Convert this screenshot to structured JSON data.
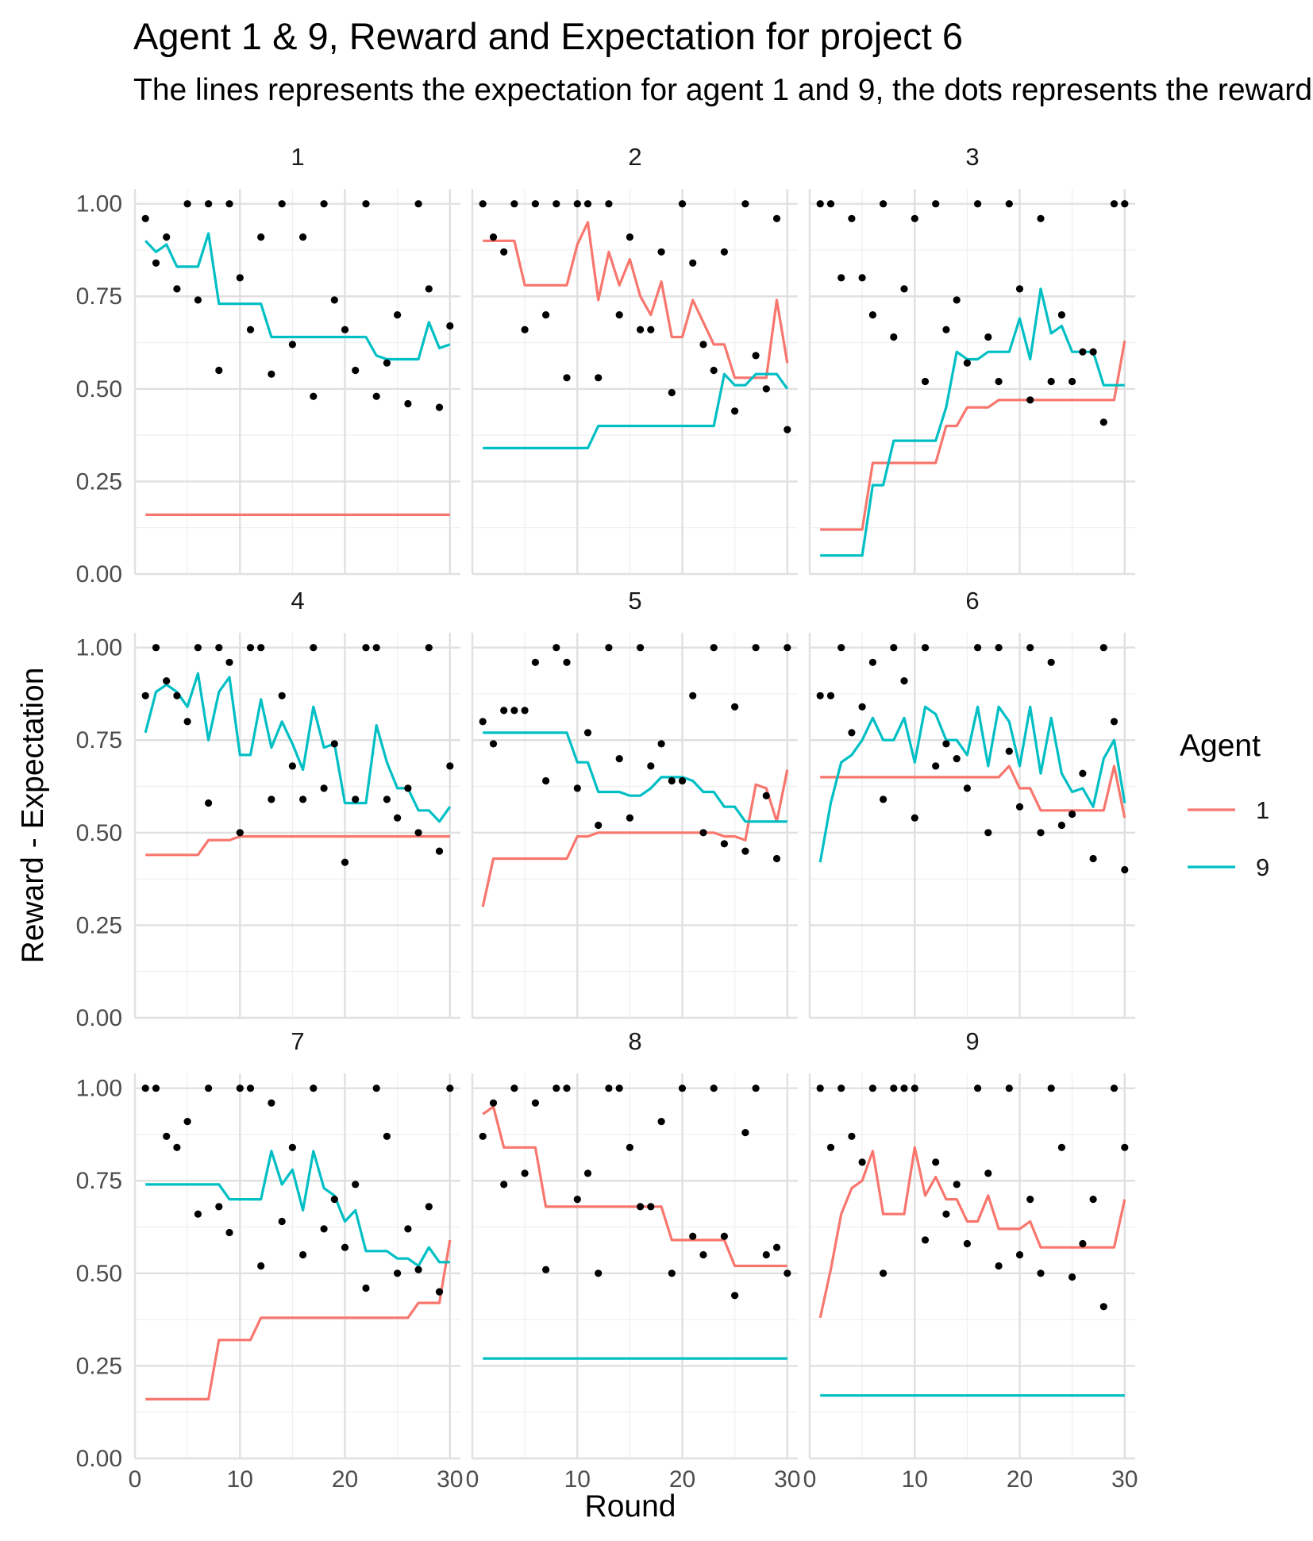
{
  "chart_data": {
    "type": "line",
    "title": "Agent 1 & 9, Reward and Expectation for project 6",
    "subtitle": "The lines represents the expectation for agent 1 and 9, the dots represents the reward",
    "xlabel": "Round",
    "ylabel": "Reward - Expectation",
    "xlim": [
      0,
      31
    ],
    "ylim": [
      0,
      1.04
    ],
    "x_ticks": [
      0,
      10,
      20,
      30
    ],
    "y_ticks": [
      0.0,
      0.25,
      0.5,
      0.75,
      1.0
    ],
    "x_tick_labels": [
      "0",
      "10",
      "20",
      "30"
    ],
    "y_tick_labels": [
      "0.00",
      "0.25",
      "0.50",
      "0.75",
      "1.00"
    ],
    "grid": true,
    "legend": {
      "title": "Agent",
      "position": "right",
      "entries": [
        {
          "label": "1",
          "color": "#F8766D"
        },
        {
          "label": "9",
          "color": "#00BFC4"
        }
      ]
    },
    "rounds": [
      1,
      2,
      3,
      4,
      5,
      6,
      7,
      8,
      9,
      10,
      11,
      12,
      13,
      14,
      15,
      16,
      17,
      18,
      19,
      20,
      21,
      22,
      23,
      24,
      25,
      26,
      27,
      28,
      29,
      30
    ],
    "panels": [
      {
        "label": "1",
        "series": [
          {
            "name": "1",
            "values": [
              0.16,
              0.16,
              0.16,
              0.16,
              0.16,
              0.16,
              0.16,
              0.16,
              0.16,
              0.16,
              0.16,
              0.16,
              0.16,
              0.16,
              0.16,
              0.16,
              0.16,
              0.16,
              0.16,
              0.16,
              0.16,
              0.16,
              0.16,
              0.16,
              0.16,
              0.16,
              0.16,
              0.16,
              0.16,
              0.16
            ]
          },
          {
            "name": "9",
            "values": [
              0.9,
              0.87,
              0.89,
              0.83,
              0.83,
              0.83,
              0.92,
              0.73,
              0.73,
              0.73,
              0.73,
              0.73,
              0.64,
              0.64,
              0.64,
              0.64,
              0.64,
              0.64,
              0.64,
              0.64,
              0.64,
              0.64,
              0.59,
              0.58,
              0.58,
              0.58,
              0.58,
              0.68,
              0.61,
              0.62
            ]
          }
        ],
        "rewards": [
          0.96,
          0.84,
          0.91,
          0.77,
          1.0,
          0.74,
          1.0,
          0.55,
          1.0,
          0.8,
          0.66,
          0.91,
          0.54,
          1.0,
          0.62,
          0.91,
          0.48,
          1.0,
          0.74,
          0.66,
          0.55,
          1.0,
          0.48,
          0.57,
          0.7,
          0.46,
          1.0,
          0.77,
          0.45,
          0.67
        ]
      },
      {
        "label": "2",
        "series": [
          {
            "name": "1",
            "values": [
              0.9,
              0.9,
              0.9,
              0.9,
              0.78,
              0.78,
              0.78,
              0.78,
              0.78,
              0.89,
              0.95,
              0.74,
              0.87,
              0.78,
              0.85,
              0.75,
              0.7,
              0.79,
              0.64,
              0.64,
              0.74,
              0.68,
              0.62,
              0.62,
              0.53,
              0.53,
              0.53,
              0.53,
              0.74,
              0.57
            ]
          },
          {
            "name": "9",
            "values": [
              0.34,
              0.34,
              0.34,
              0.34,
              0.34,
              0.34,
              0.34,
              0.34,
              0.34,
              0.34,
              0.34,
              0.4,
              0.4,
              0.4,
              0.4,
              0.4,
              0.4,
              0.4,
              0.4,
              0.4,
              0.4,
              0.4,
              0.4,
              0.54,
              0.51,
              0.51,
              0.54,
              0.54,
              0.54,
              0.5
            ]
          }
        ],
        "rewards": [
          1.0,
          0.91,
          0.87,
          1.0,
          0.66,
          1.0,
          0.7,
          1.0,
          0.53,
          1.0,
          1.0,
          0.53,
          1.0,
          0.7,
          0.91,
          0.66,
          0.66,
          0.87,
          0.49,
          1.0,
          0.84,
          0.62,
          0.55,
          0.87,
          0.44,
          1.0,
          0.59,
          0.5,
          0.96,
          0.39
        ]
      },
      {
        "label": "3",
        "series": [
          {
            "name": "1",
            "values": [
              0.12,
              0.12,
              0.12,
              0.12,
              0.12,
              0.3,
              0.3,
              0.3,
              0.3,
              0.3,
              0.3,
              0.3,
              0.4,
              0.4,
              0.45,
              0.45,
              0.45,
              0.47,
              0.47,
              0.47,
              0.47,
              0.47,
              0.47,
              0.47,
              0.47,
              0.47,
              0.47,
              0.47,
              0.47,
              0.63
            ]
          },
          {
            "name": "9",
            "values": [
              0.05,
              0.05,
              0.05,
              0.05,
              0.05,
              0.24,
              0.24,
              0.36,
              0.36,
              0.36,
              0.36,
              0.36,
              0.45,
              0.6,
              0.58,
              0.58,
              0.6,
              0.6,
              0.6,
              0.69,
              0.58,
              0.77,
              0.65,
              0.67,
              0.6,
              0.6,
              0.6,
              0.51,
              0.51,
              0.51
            ]
          }
        ],
        "rewards": [
          1.0,
          1.0,
          0.8,
          0.96,
          0.8,
          0.7,
          1.0,
          0.64,
          0.77,
          0.96,
          0.52,
          1.0,
          0.66,
          0.74,
          0.57,
          1.0,
          0.64,
          0.52,
          1.0,
          0.77,
          0.47,
          0.96,
          0.52,
          0.7,
          0.52,
          0.6,
          0.6,
          0.41,
          1.0,
          1.0
        ]
      },
      {
        "label": "4",
        "series": [
          {
            "name": "1",
            "values": [
              0.44,
              0.44,
              0.44,
              0.44,
              0.44,
              0.44,
              0.48,
              0.48,
              0.48,
              0.49,
              0.49,
              0.49,
              0.49,
              0.49,
              0.49,
              0.49,
              0.49,
              0.49,
              0.49,
              0.49,
              0.49,
              0.49,
              0.49,
              0.49,
              0.49,
              0.49,
              0.49,
              0.49,
              0.49,
              0.49
            ]
          },
          {
            "name": "9",
            "values": [
              0.77,
              0.88,
              0.9,
              0.88,
              0.84,
              0.93,
              0.75,
              0.88,
              0.92,
              0.71,
              0.71,
              0.86,
              0.73,
              0.8,
              0.74,
              0.67,
              0.84,
              0.73,
              0.74,
              0.58,
              0.58,
              0.58,
              0.79,
              0.69,
              0.62,
              0.62,
              0.56,
              0.56,
              0.53,
              0.57
            ]
          }
        ],
        "rewards": [
          0.87,
          1.0,
          0.91,
          0.87,
          0.8,
          1.0,
          0.58,
          1.0,
          0.96,
          0.5,
          1.0,
          1.0,
          0.59,
          0.87,
          0.68,
          0.59,
          1.0,
          0.62,
          0.74,
          0.42,
          0.59,
          1.0,
          1.0,
          0.59,
          0.54,
          0.62,
          0.5,
          1.0,
          0.45,
          0.68
        ]
      },
      {
        "label": "5",
        "series": [
          {
            "name": "1",
            "values": [
              0.3,
              0.43,
              0.43,
              0.43,
              0.43,
              0.43,
              0.43,
              0.43,
              0.43,
              0.49,
              0.49,
              0.5,
              0.5,
              0.5,
              0.5,
              0.5,
              0.5,
              0.5,
              0.5,
              0.5,
              0.5,
              0.5,
              0.5,
              0.49,
              0.49,
              0.48,
              0.63,
              0.62,
              0.53,
              0.67
            ]
          },
          {
            "name": "9",
            "values": [
              0.77,
              0.77,
              0.77,
              0.77,
              0.77,
              0.77,
              0.77,
              0.77,
              0.77,
              0.69,
              0.69,
              0.61,
              0.61,
              0.61,
              0.6,
              0.6,
              0.62,
              0.65,
              0.65,
              0.65,
              0.64,
              0.61,
              0.61,
              0.57,
              0.57,
              0.53,
              0.53,
              0.53,
              0.53,
              0.53
            ]
          }
        ],
        "rewards": [
          0.8,
          0.74,
          0.83,
          0.83,
          0.83,
          0.96,
          0.64,
          1.0,
          0.96,
          0.62,
          0.77,
          0.52,
          1.0,
          0.7,
          0.54,
          1.0,
          0.68,
          0.74,
          0.64,
          0.64,
          0.87,
          0.5,
          1.0,
          0.47,
          0.84,
          0.45,
          1.0,
          0.6,
          0.43,
          1.0
        ]
      },
      {
        "label": "6",
        "series": [
          {
            "name": "1",
            "values": [
              0.65,
              0.65,
              0.65,
              0.65,
              0.65,
              0.65,
              0.65,
              0.65,
              0.65,
              0.65,
              0.65,
              0.65,
              0.65,
              0.65,
              0.65,
              0.65,
              0.65,
              0.65,
              0.68,
              0.62,
              0.62,
              0.56,
              0.56,
              0.56,
              0.56,
              0.56,
              0.56,
              0.56,
              0.68,
              0.54
            ]
          },
          {
            "name": "9",
            "values": [
              0.42,
              0.58,
              0.69,
              0.71,
              0.75,
              0.81,
              0.75,
              0.75,
              0.81,
              0.69,
              0.84,
              0.82,
              0.75,
              0.75,
              0.71,
              0.84,
              0.68,
              0.84,
              0.8,
              0.68,
              0.84,
              0.66,
              0.81,
              0.66,
              0.61,
              0.62,
              0.57,
              0.7,
              0.75,
              0.58
            ]
          }
        ],
        "rewards": [
          0.87,
          0.87,
          1.0,
          0.77,
          0.84,
          0.96,
          0.59,
          1.0,
          0.91,
          0.54,
          1.0,
          0.68,
          0.74,
          0.7,
          0.62,
          1.0,
          0.5,
          1.0,
          0.72,
          0.57,
          1.0,
          0.5,
          0.96,
          0.52,
          0.55,
          0.66,
          0.43,
          1.0,
          0.8,
          0.4
        ]
      },
      {
        "label": "7",
        "series": [
          {
            "name": "1",
            "values": [
              0.16,
              0.16,
              0.16,
              0.16,
              0.16,
              0.16,
              0.16,
              0.32,
              0.32,
              0.32,
              0.32,
              0.38,
              0.38,
              0.38,
              0.38,
              0.38,
              0.38,
              0.38,
              0.38,
              0.38,
              0.38,
              0.38,
              0.38,
              0.38,
              0.38,
              0.38,
              0.42,
              0.42,
              0.42,
              0.59
            ]
          },
          {
            "name": "9",
            "values": [
              0.74,
              0.74,
              0.74,
              0.74,
              0.74,
              0.74,
              0.74,
              0.74,
              0.7,
              0.7,
              0.7,
              0.7,
              0.83,
              0.74,
              0.78,
              0.67,
              0.83,
              0.73,
              0.71,
              0.64,
              0.67,
              0.56,
              0.56,
              0.56,
              0.54,
              0.54,
              0.52,
              0.57,
              0.53,
              0.53
            ]
          }
        ],
        "rewards": [
          1.0,
          1.0,
          0.87,
          0.84,
          0.91,
          0.66,
          1.0,
          0.68,
          0.61,
          1.0,
          1.0,
          0.52,
          0.96,
          0.64,
          0.84,
          0.55,
          1.0,
          0.62,
          0.7,
          0.57,
          0.74,
          0.46,
          1.0,
          0.87,
          0.5,
          0.62,
          0.51,
          0.68,
          0.45,
          1.0
        ]
      },
      {
        "label": "8",
        "series": [
          {
            "name": "1",
            "values": [
              0.93,
              0.95,
              0.84,
              0.84,
              0.84,
              0.84,
              0.68,
              0.68,
              0.68,
              0.68,
              0.68,
              0.68,
              0.68,
              0.68,
              0.68,
              0.68,
              0.68,
              0.68,
              0.59,
              0.59,
              0.59,
              0.59,
              0.59,
              0.59,
              0.52,
              0.52,
              0.52,
              0.52,
              0.52,
              0.52
            ]
          },
          {
            "name": "9",
            "values": [
              0.27,
              0.27,
              0.27,
              0.27,
              0.27,
              0.27,
              0.27,
              0.27,
              0.27,
              0.27,
              0.27,
              0.27,
              0.27,
              0.27,
              0.27,
              0.27,
              0.27,
              0.27,
              0.27,
              0.27,
              0.27,
              0.27,
              0.27,
              0.27,
              0.27,
              0.27,
              0.27,
              0.27,
              0.27,
              0.27
            ]
          }
        ],
        "rewards": [
          0.87,
          0.96,
          0.74,
          1.0,
          0.77,
          0.96,
          0.51,
          1.0,
          1.0,
          0.7,
          0.77,
          0.5,
          1.0,
          1.0,
          0.84,
          0.68,
          0.68,
          0.91,
          0.5,
          1.0,
          0.6,
          0.55,
          1.0,
          0.6,
          0.44,
          0.88,
          1.0,
          0.55,
          0.57,
          0.5
        ]
      },
      {
        "label": "9",
        "series": [
          {
            "name": "1",
            "values": [
              0.38,
              0.51,
              0.66,
              0.73,
              0.75,
              0.83,
              0.66,
              0.66,
              0.66,
              0.84,
              0.71,
              0.76,
              0.7,
              0.7,
              0.64,
              0.64,
              0.71,
              0.62,
              0.62,
              0.62,
              0.64,
              0.57,
              0.57,
              0.57,
              0.57,
              0.57,
              0.57,
              0.57,
              0.57,
              0.7
            ]
          },
          {
            "name": "9",
            "values": [
              0.17,
              0.17,
              0.17,
              0.17,
              0.17,
              0.17,
              0.17,
              0.17,
              0.17,
              0.17,
              0.17,
              0.17,
              0.17,
              0.17,
              0.17,
              0.17,
              0.17,
              0.17,
              0.17,
              0.17,
              0.17,
              0.17,
              0.17,
              0.17,
              0.17,
              0.17,
              0.17,
              0.17,
              0.17,
              0.17
            ]
          }
        ],
        "rewards": [
          1.0,
          0.84,
          1.0,
          0.87,
          0.8,
          1.0,
          0.5,
          1.0,
          1.0,
          1.0,
          0.59,
          0.8,
          0.66,
          0.74,
          0.58,
          1.0,
          0.77,
          0.52,
          1.0,
          0.55,
          0.7,
          0.5,
          1.0,
          0.84,
          0.49,
          0.58,
          0.7,
          0.41,
          1.0,
          0.84
        ]
      }
    ]
  }
}
